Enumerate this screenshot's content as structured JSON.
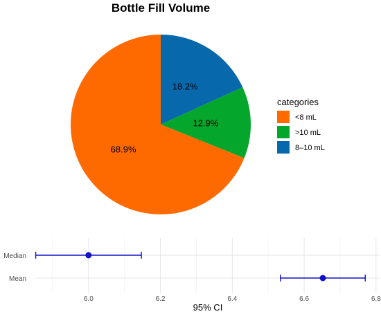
{
  "chart_data": [
    {
      "type": "pie",
      "title": "Bottle Fill Volume",
      "legend_title": "categories",
      "legend_position": "right",
      "start": "12 o'clock",
      "direction": "clockwise",
      "slices": [
        {
          "label": "8–10 mL",
          "value": 18.2,
          "display": "18.2%",
          "color": "#0868AC"
        },
        {
          "label": ">10 mL",
          "value": 12.9,
          "display": "12.9%",
          "color": "#05A62C"
        },
        {
          "label": "<8 mL",
          "value": 68.9,
          "display": "68.9%",
          "color": "#FF6A00"
        }
      ],
      "legend_order": [
        "<8 mL",
        ">10 mL",
        "8–10 mL"
      ]
    },
    {
      "type": "scatter",
      "subtype": "point-errorbar",
      "xlabel": "95% CI",
      "xlim": [
        5.85,
        6.81
      ],
      "xticks": [
        6.0,
        6.2,
        6.4,
        6.6,
        6.8
      ],
      "xtick_labels": [
        "6.0",
        "6.2",
        "6.4",
        "6.6",
        "6.8"
      ],
      "grid": true,
      "color": "#1010C8",
      "rows": [
        {
          "label": "Median",
          "estimate": 6.0,
          "lower": 5.853,
          "upper": 6.147
        },
        {
          "label": "Mean",
          "estimate": 6.652,
          "lower": 6.534,
          "upper": 6.77
        }
      ]
    }
  ]
}
